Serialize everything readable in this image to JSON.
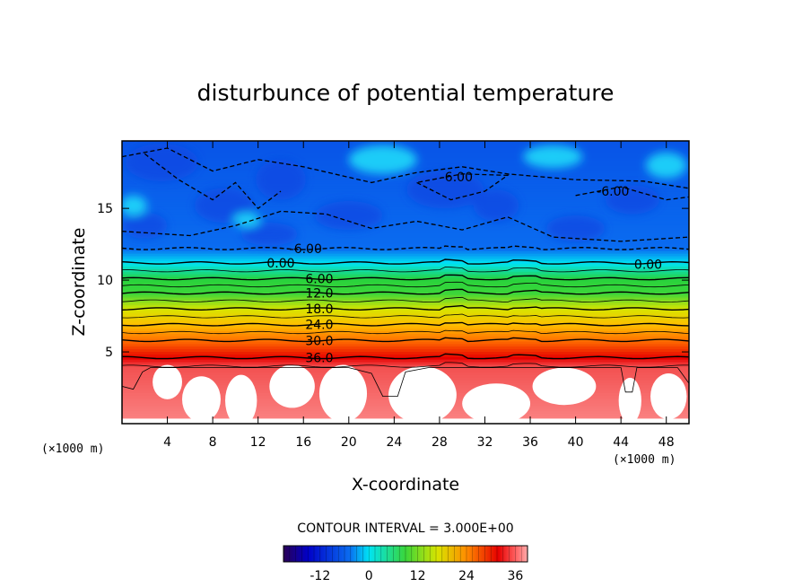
{
  "chart_data": {
    "type": "heatmap",
    "title": "disturbunce of potential temperature",
    "xlabel": "X-coordinate",
    "ylabel": "Z-coordinate",
    "x_unit": "(×1000 m)",
    "z_unit": "(×1000 m)",
    "xlim": [
      0,
      50
    ],
    "ylim": [
      0,
      19.7
    ],
    "x_ticks": [
      4,
      8,
      12,
      16,
      20,
      24,
      28,
      32,
      36,
      40,
      44,
      48
    ],
    "y_ticks": [
      5,
      10,
      15
    ],
    "contour_interval_text": "CONTOUR INTERVAL = 3.000E+00",
    "contour_interval": 3.0,
    "contour_labels": [
      {
        "text": "-6.00",
        "x": 29.5,
        "z": 17.2
      },
      {
        "text": "-6.00",
        "x": 43.3,
        "z": 16.2
      },
      {
        "text": "-6.00",
        "x": 16.2,
        "z": 12.2
      },
      {
        "text": "0.00",
        "x": 14.0,
        "z": 11.2
      },
      {
        "text": "0.00",
        "x": 46.4,
        "z": 11.1
      },
      {
        "text": "6.00",
        "x": 17.4,
        "z": 10.1
      },
      {
        "text": "12.0",
        "x": 17.4,
        "z": 9.1
      },
      {
        "text": "18.0",
        "x": 17.4,
        "z": 8.0
      },
      {
        "text": "24.0",
        "x": 17.4,
        "z": 6.9
      },
      {
        "text": "30.0",
        "x": 17.4,
        "z": 5.8
      },
      {
        "text": "36.0",
        "x": 17.4,
        "z": 4.6
      }
    ],
    "colorbar": {
      "min": -21,
      "max": 39,
      "tick_labels": [
        "-12",
        "0",
        "12",
        "24",
        "36"
      ],
      "ticks": [
        -12,
        0,
        12,
        24,
        36
      ]
    },
    "field_profile": [
      {
        "z": 0.0,
        "value": 38.5
      },
      {
        "z": 4.0,
        "value": 37.5
      },
      {
        "z": 4.6,
        "value": 36
      },
      {
        "z": 5.8,
        "value": 30
      },
      {
        "z": 6.9,
        "value": 24
      },
      {
        "z": 8.0,
        "value": 18
      },
      {
        "z": 9.1,
        "value": 12
      },
      {
        "z": 10.1,
        "value": 6
      },
      {
        "z": 11.2,
        "value": 0
      },
      {
        "z": 12.2,
        "value": -6
      },
      {
        "z": 16.0,
        "value": -7
      },
      {
        "z": 19.7,
        "value": -8
      }
    ]
  }
}
